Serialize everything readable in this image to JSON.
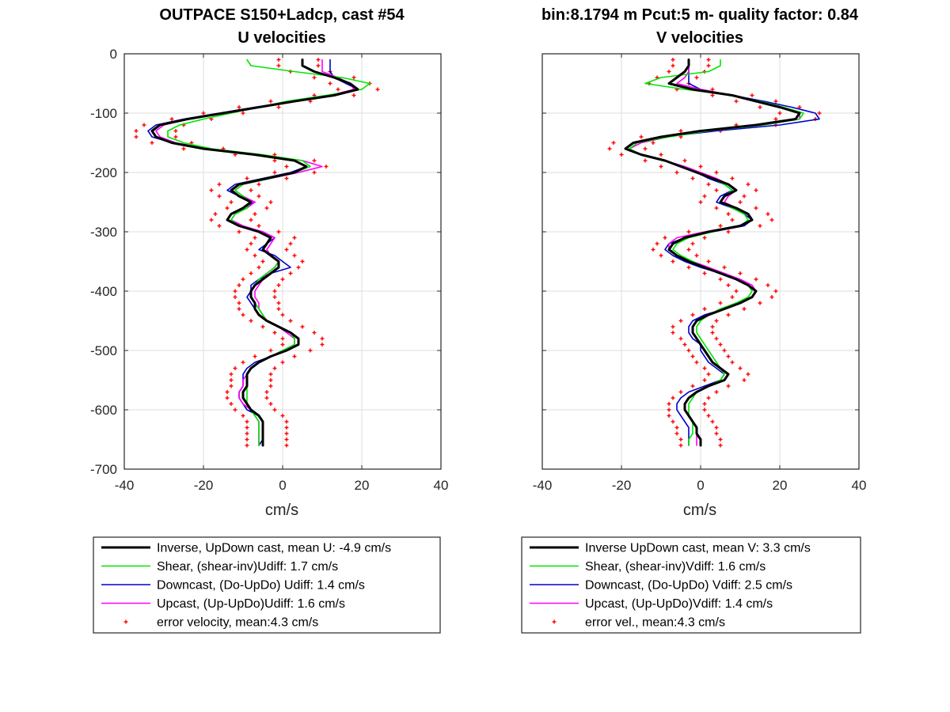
{
  "figure": {
    "left_title_line1": "OUTPACE S150+Ladcp, cast #54",
    "left_title_line2": "U velocities",
    "right_title_line1": "bin:8.1794 m  Pcut:5 m- quality factor:  0.84",
    "right_title_line2": "V velocities"
  },
  "colors": {
    "inverse": "#000000",
    "shear": "#00e600",
    "downcast": "#0000cc",
    "upcast": "#ff00ff",
    "error": "#ff0000",
    "grid": "#dcdcdc",
    "axis": "#262626"
  },
  "chart_data": [
    {
      "type": "line",
      "title": "U velocities",
      "xlabel": "cm/s",
      "ylabel": "",
      "xlim": [
        -40,
        40
      ],
      "ylim": [
        -700,
        0
      ],
      "xticks": [
        -40,
        -20,
        0,
        20,
        40
      ],
      "xtick_labels": [
        "-40",
        "-20",
        "0",
        "20",
        "40"
      ],
      "yticks": [
        0,
        -100,
        -200,
        -300,
        -400,
        -500,
        -600,
        -700
      ],
      "ytick_labels": [
        "0",
        "-100",
        "-200",
        "-300",
        "-400",
        "-500",
        "-600",
        "-700"
      ],
      "grid": true,
      "legend_position": "below",
      "depth": [
        -10,
        -20,
        -30,
        -40,
        -50,
        -60,
        -70,
        -80,
        -90,
        -100,
        -110,
        -120,
        -130,
        -140,
        -150,
        -160,
        -170,
        -180,
        -190,
        -200,
        -210,
        -220,
        -230,
        -240,
        -250,
        -260,
        -270,
        -280,
        -290,
        -300,
        -310,
        -320,
        -330,
        -340,
        -350,
        -360,
        -370,
        -380,
        -390,
        -400,
        -410,
        -420,
        -430,
        -440,
        -450,
        -460,
        -470,
        -480,
        -490,
        -500,
        -510,
        -520,
        -530,
        -540,
        -550,
        -560,
        -570,
        -580,
        -590,
        -600,
        -610,
        -620,
        -630,
        -640,
        -650,
        -660
      ],
      "series": [
        {
          "name": "Inverse, UpDown cast, mean U:  -4.9 cm/s",
          "style": "line",
          "color_key": "inverse",
          "width": 3,
          "values": [
            5,
            5,
            8,
            13,
            17,
            19,
            13,
            3,
            -6,
            -15,
            -24,
            -31,
            -33,
            -32,
            -28,
            -20,
            -7,
            3,
            6,
            3,
            -4,
            -11,
            -13,
            -11,
            -8,
            -10,
            -13,
            -14,
            -11,
            -6,
            -3,
            -4,
            -5,
            -3,
            -1,
            -1,
            -3,
            -5,
            -7,
            -8,
            -8,
            -7,
            -7,
            -6,
            -4,
            -1,
            2,
            4,
            4,
            1,
            -3,
            -6,
            -8,
            -9,
            -9,
            -9,
            -10,
            -10,
            -9,
            -8,
            -6,
            -5,
            -5,
            -5,
            -5,
            -5
          ]
        },
        {
          "name": "Shear, (shear-inv)Udiff:  1.7 cm/s",
          "style": "line",
          "color_key": "shear",
          "width": 1.6,
          "values": [
            -9,
            -8,
            3,
            15,
            22,
            20,
            11,
            1,
            -6,
            -13,
            -20,
            -26,
            -29,
            -29,
            -25,
            -18,
            -5,
            5,
            7,
            3,
            -3,
            -10,
            -12,
            -10,
            -8,
            -9,
            -12,
            -13,
            -11,
            -6,
            -3,
            -4,
            -5,
            -3,
            -1,
            -2,
            -4,
            -6,
            -7,
            -8,
            -8,
            -7,
            -6,
            -5,
            -4,
            -1,
            2,
            3,
            3,
            0,
            -3,
            -6,
            -8,
            -9,
            -9,
            -9,
            -9,
            -9,
            -9,
            -8,
            -7,
            -6,
            -6,
            -6,
            -6,
            -6
          ]
        },
        {
          "name": "Downcast, (Do-UpDo) Udiff:  1.4 cm/s",
          "style": "line",
          "color_key": "downcast",
          "width": 1.6,
          "values": [
            12,
            12,
            12,
            13,
            16,
            19,
            13,
            3,
            -7,
            -16,
            -25,
            -32,
            -34,
            -33,
            -28,
            -20,
            -8,
            3,
            6,
            2,
            -5,
            -12,
            -14,
            -11,
            -7,
            -10,
            -13,
            -14,
            -11,
            -5,
            -2,
            -4,
            -6,
            -2,
            0,
            2,
            -3,
            -6,
            -8,
            -8,
            -9,
            -8,
            -7,
            -6,
            -4,
            -1,
            2,
            4,
            4,
            1,
            -3,
            -7,
            -9,
            -10,
            -10,
            -10,
            -11,
            -11,
            -10,
            -9,
            -6,
            -5,
            -5,
            -5,
            -5,
            -6
          ]
        },
        {
          "name": "Upcast, (Up-UpDo)Udiff:  1.6 cm/s",
          "style": "line",
          "color_key": "upcast",
          "width": 1.6,
          "values": [
            10,
            10,
            10,
            14,
            17,
            18,
            12,
            2,
            -6,
            -15,
            -24,
            -30,
            -32,
            -31,
            -27,
            -19,
            -6,
            5,
            10,
            4,
            -3,
            -10,
            -12,
            -10,
            -7,
            -9,
            -12,
            -13,
            -10,
            -5,
            -2,
            -3,
            -4,
            -3,
            -1,
            -2,
            -4,
            -5,
            -6,
            -7,
            -7,
            -6,
            -6,
            -5,
            -4,
            -1,
            1,
            3,
            3,
            0,
            -3,
            -6,
            -8,
            -9,
            -10,
            -10,
            -11,
            -11,
            -10,
            -8,
            -7,
            -6,
            -6,
            -6,
            -6,
            -6
          ]
        },
        {
          "name": "error velocity, mean:4.3 cm/s",
          "style": "dots",
          "color_key": "error",
          "width": 1,
          "values_minus": [
            -1,
            -1,
            2,
            8,
            12,
            14,
            8,
            -3,
            -11,
            -20,
            -28,
            -35,
            -37,
            -37,
            -33,
            -25,
            -12,
            -2,
            1,
            -2,
            -9,
            -16,
            -18,
            -16,
            -13,
            -14,
            -17,
            -18,
            -16,
            -11,
            -7,
            -8,
            -9,
            -7,
            -5,
            -6,
            -8,
            -10,
            -11,
            -12,
            -12,
            -11,
            -11,
            -10,
            -8,
            -5,
            -2,
            0,
            0,
            -3,
            -7,
            -10,
            -12,
            -13,
            -13,
            -13,
            -14,
            -14,
            -13,
            -12,
            -10,
            -9,
            -9,
            -9,
            -9,
            -9
          ],
          "values_plus": [
            9,
            9,
            12,
            18,
            22,
            24,
            18,
            7,
            -1,
            -10,
            -18,
            -25,
            -27,
            -27,
            -23,
            -15,
            -2,
            8,
            11,
            8,
            1,
            -6,
            -8,
            -6,
            -3,
            -4,
            -7,
            -8,
            -6,
            -1,
            3,
            2,
            1,
            3,
            5,
            4,
            2,
            0,
            -1,
            -2,
            -2,
            -1,
            -1,
            0,
            2,
            5,
            8,
            10,
            10,
            7,
            3,
            0,
            -2,
            -3,
            -3,
            -3,
            -4,
            -4,
            -3,
            -2,
            0,
            1,
            1,
            1,
            1,
            1
          ]
        }
      ]
    },
    {
      "type": "line",
      "title": "V velocities",
      "xlabel": "cm/s",
      "ylabel": "",
      "xlim": [
        -40,
        40
      ],
      "ylim": [
        -700,
        0
      ],
      "xticks": [
        -40,
        -20,
        0,
        20,
        40
      ],
      "xtick_labels": [
        "-40",
        "-20",
        "0",
        "20",
        "40"
      ],
      "yticks": [
        0,
        -100,
        -200,
        -300,
        -400,
        -500,
        -600,
        -700
      ],
      "ytick_labels": [],
      "grid": true,
      "legend_position": "below",
      "depth": [
        -10,
        -20,
        -30,
        -40,
        -50,
        -60,
        -70,
        -80,
        -90,
        -100,
        -110,
        -120,
        -130,
        -140,
        -150,
        -160,
        -170,
        -180,
        -190,
        -200,
        -210,
        -220,
        -230,
        -240,
        -250,
        -260,
        -270,
        -280,
        -290,
        -300,
        -310,
        -320,
        -330,
        -340,
        -350,
        -360,
        -370,
        -380,
        -390,
        -400,
        -410,
        -420,
        -430,
        -440,
        -450,
        -460,
        -470,
        -480,
        -490,
        -500,
        -510,
        -520,
        -530,
        -540,
        -550,
        -560,
        -570,
        -580,
        -590,
        -600,
        -610,
        -620,
        -630,
        -640,
        -650,
        -660
      ],
      "series": [
        {
          "name": "Inverse UpDown cast, mean V:  3.3 cm/s",
          "style": "line",
          "color_key": "inverse",
          "width": 3,
          "values": [
            -3,
            -3,
            -4,
            -6,
            -8,
            -2,
            8,
            14,
            20,
            25,
            24,
            14,
            0,
            -10,
            -17,
            -19,
            -15,
            -9,
            -5,
            -1,
            3,
            7,
            9,
            6,
            5,
            9,
            12,
            13,
            10,
            2,
            -4,
            -7,
            -8,
            -6,
            -3,
            1,
            5,
            9,
            12,
            14,
            13,
            10,
            6,
            2,
            -1,
            -2,
            -2,
            -1,
            0,
            1,
            2,
            3,
            5,
            7,
            6,
            2,
            -1,
            -3,
            -4,
            -4,
            -3,
            -2,
            -1,
            -1,
            0,
            0
          ]
        },
        {
          "name": "Shear, (shear-inv)Vdiff:  1.6 cm/s",
          "style": "line",
          "color_key": "shear",
          "width": 1.6,
          "values": [
            5,
            5,
            2,
            -10,
            -14,
            -4,
            8,
            15,
            21,
            26,
            25,
            16,
            2,
            -8,
            -16,
            -18,
            -15,
            -9,
            -5,
            -1,
            3,
            6,
            8,
            6,
            5,
            8,
            11,
            12,
            10,
            3,
            -3,
            -6,
            -7,
            -5,
            -2,
            1,
            5,
            9,
            12,
            13,
            12,
            9,
            5,
            2,
            0,
            -1,
            -1,
            0,
            1,
            2,
            3,
            4,
            5,
            6,
            5,
            2,
            -1,
            -2,
            -3,
            -3,
            -3,
            -2,
            -2,
            -2,
            -3,
            -3
          ]
        },
        {
          "name": "Downcast, (Do-UpDo) Vdiff:  2.5 cm/s",
          "style": "line",
          "color_key": "downcast",
          "width": 1.6,
          "values": [
            -3,
            -3,
            -3,
            -3,
            -3,
            0,
            8,
            16,
            23,
            29,
            30,
            20,
            4,
            -9,
            -17,
            -19,
            -15,
            -9,
            -5,
            -1,
            2,
            6,
            8,
            5,
            4,
            8,
            11,
            13,
            11,
            3,
            -4,
            -8,
            -9,
            -7,
            -4,
            0,
            5,
            9,
            12,
            14,
            13,
            10,
            6,
            1,
            -2,
            -3,
            -3,
            -2,
            0,
            0,
            1,
            2,
            4,
            6,
            5,
            1,
            -3,
            -5,
            -6,
            -6,
            -5,
            -4,
            -3,
            -3,
            -3,
            -3
          ]
        },
        {
          "name": "Upcast, (Up-UpDo)Vdiff:  1.4 cm/s",
          "style": "line",
          "color_key": "upcast",
          "width": 1.6,
          "values": [
            -3,
            -3,
            -3,
            -4,
            -6,
            0,
            8,
            14,
            20,
            25,
            25,
            16,
            2,
            -8,
            -15,
            -18,
            -15,
            -9,
            -4,
            0,
            4,
            7,
            9,
            7,
            6,
            9,
            12,
            13,
            10,
            1,
            -6,
            -8,
            -8,
            -6,
            -2,
            2,
            6,
            10,
            13,
            14,
            13,
            9,
            5,
            2,
            -1,
            -2,
            -2,
            -1,
            0,
            1,
            2,
            3,
            5,
            7,
            6,
            2,
            -1,
            -3,
            -4,
            -4,
            -3,
            -2,
            -1,
            -1,
            -1,
            -1
          ]
        },
        {
          "name": "error vel., mean:4.3 cm/s",
          "style": "dots",
          "color_key": "error",
          "width": 1,
          "values_minus": [
            -7,
            -7,
            -8,
            -11,
            -13,
            -6,
            3,
            9,
            15,
            20,
            19,
            9,
            -5,
            -15,
            -22,
            -23,
            -20,
            -14,
            -10,
            -6,
            -2,
            2,
            4,
            1,
            0,
            4,
            7,
            8,
            5,
            -3,
            -9,
            -11,
            -12,
            -10,
            -7,
            -3,
            1,
            5,
            7,
            9,
            8,
            5,
            1,
            -2,
            -5,
            -7,
            -7,
            -5,
            -4,
            -3,
            -2,
            -1,
            1,
            2,
            1,
            -2,
            -5,
            -7,
            -8,
            -8,
            -8,
            -7,
            -6,
            -6,
            -5,
            -5
          ],
          "values_plus": [
            2,
            2,
            1,
            -1,
            -3,
            3,
            13,
            19,
            25,
            30,
            29,
            19,
            5,
            -5,
            -12,
            -14,
            -10,
            -4,
            0,
            4,
            8,
            12,
            14,
            11,
            10,
            14,
            17,
            18,
            15,
            7,
            1,
            -2,
            -3,
            -1,
            2,
            6,
            10,
            14,
            17,
            19,
            18,
            15,
            11,
            7,
            4,
            3,
            3,
            4,
            5,
            6,
            7,
            8,
            10,
            12,
            11,
            7,
            4,
            2,
            1,
            1,
            2,
            3,
            4,
            4,
            5,
            5
          ]
        }
      ]
    }
  ]
}
